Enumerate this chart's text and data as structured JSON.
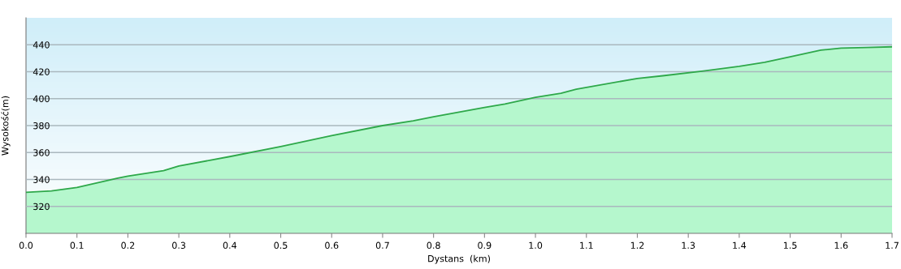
{
  "chart_data": {
    "type": "area",
    "xlabel": "Dystans  (km)",
    "ylabel": "Wysokość(m)",
    "x": [
      0,
      0.05,
      0.1,
      0.18,
      0.2,
      0.27,
      0.3,
      0.4,
      0.5,
      0.6,
      0.7,
      0.76,
      0.8,
      0.9,
      0.94,
      1.0,
      1.05,
      1.08,
      1.2,
      1.25,
      1.33,
      1.4,
      1.45,
      1.5,
      1.56,
      1.6,
      1.65,
      1.7
    ],
    "series": [
      {
        "color": "#2ea84a",
        "values": [
          330.5,
          331.5,
          334,
          341,
          342.5,
          346.5,
          350,
          357,
          364.5,
          372.5,
          380,
          383.5,
          386.5,
          393.5,
          396,
          401,
          404,
          407,
          415,
          417,
          420.5,
          424,
          427,
          431,
          436,
          437.5,
          438,
          438.5
        ]
      }
    ],
    "xlim": [
      0,
      1.7
    ],
    "ylim": [
      300,
      460
    ],
    "xticks": [
      {
        "value": 0,
        "label": "0.0"
      },
      0.1,
      0.2,
      0.3,
      0.4,
      0.5,
      0.6,
      0.7,
      0.8,
      0.9,
      {
        "value": 1,
        "label": "1.0"
      },
      1.1,
      1.2,
      1.3,
      1.4,
      1.5,
      1.6,
      1.7
    ],
    "yticks": [
      320,
      340,
      360,
      380,
      400,
      420,
      440
    ],
    "grid": "y"
  }
}
